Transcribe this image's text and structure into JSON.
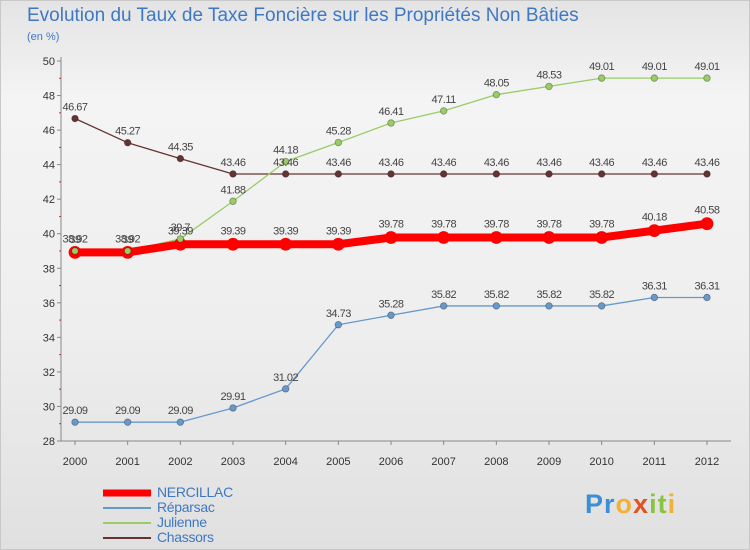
{
  "title": "Evolution du Taux de Taxe Foncière sur les Propriétés Non Bâties",
  "units": "(en %)",
  "logo": "Proxiti",
  "colors": {
    "NERCILLAC": "#ff0000",
    "Réparsac": "#6699cc",
    "Julienne": "#99cc66",
    "Chassors": "#663333"
  },
  "chart_data": {
    "type": "line",
    "title": "Evolution du Taux de Taxe Foncière sur les Propriétés Non Bâties",
    "ylabel": "(en %)",
    "xlabel": "",
    "x": [
      "2000",
      "2001",
      "2002",
      "2003",
      "2004",
      "2005",
      "2006",
      "2007",
      "2008",
      "2009",
      "2010",
      "2011",
      "2012"
    ],
    "ylim": [
      28,
      50
    ],
    "yticks": [
      28,
      30,
      32,
      34,
      36,
      38,
      40,
      42,
      44,
      46,
      48,
      50
    ],
    "grid": false,
    "legend_position": "bottom-left",
    "series": [
      {
        "name": "NERCILLAC",
        "values": [
          38.92,
          38.92,
          39.39,
          39.39,
          39.39,
          39.39,
          39.78,
          39.78,
          39.78,
          39.78,
          39.78,
          40.18,
          40.58
        ],
        "labels": [
          "38.92",
          "38.92",
          "39.39",
          "39.39",
          "39.39",
          "39.39",
          "39.78",
          "39.78",
          "39.78",
          "39.78",
          "39.78",
          "40.18",
          "40.58"
        ]
      },
      {
        "name": "Réparsac",
        "values": [
          29.09,
          29.09,
          29.09,
          29.91,
          31.02,
          34.73,
          35.28,
          35.82,
          35.82,
          35.82,
          35.82,
          36.31,
          36.31
        ],
        "labels": [
          "29.09",
          "29.09",
          "29.09",
          "29.91",
          "31.02",
          "34.73",
          "35.28",
          "35.82",
          "35.82",
          "35.82",
          "35.82",
          "36.31",
          "36.31"
        ]
      },
      {
        "name": "Julienne",
        "values": [
          39,
          39,
          39.7,
          41.88,
          44.18,
          45.28,
          46.41,
          47.11,
          48.05,
          48.53,
          49.01,
          49.01,
          49.01
        ],
        "labels": [
          "39",
          "39",
          "39.7",
          "41.88",
          "44.18",
          "45.28",
          "46.41",
          "47.11",
          "48.05",
          "48.53",
          "49.01",
          "49.01",
          "49.01"
        ]
      },
      {
        "name": "Chassors",
        "values": [
          46.67,
          45.27,
          44.35,
          43.46,
          43.46,
          43.46,
          43.46,
          43.46,
          43.46,
          43.46,
          43.46,
          43.46,
          43.46
        ],
        "labels": [
          "46.67",
          "45.27",
          "44.35",
          "43.46",
          "43.46",
          "43.46",
          "43.46",
          "43.46",
          "43.46",
          "43.46",
          "43.46",
          "43.46",
          "43.46"
        ]
      }
    ]
  }
}
